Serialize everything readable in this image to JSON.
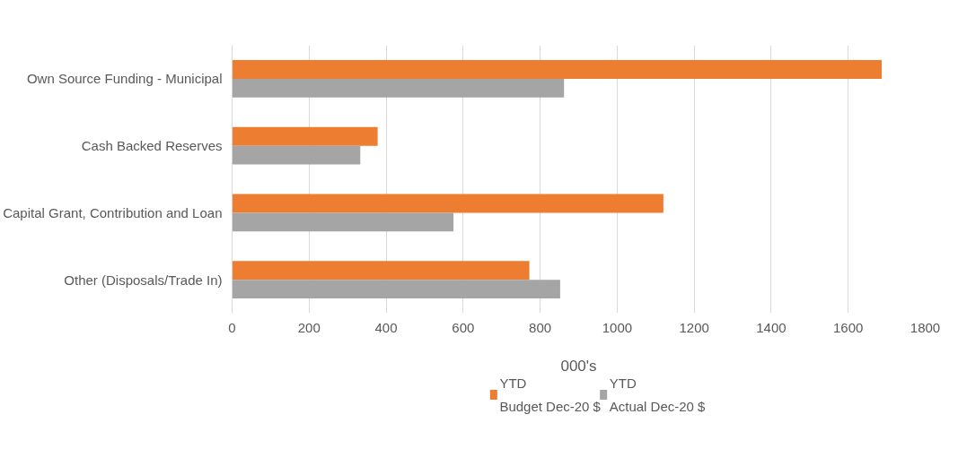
{
  "chart_data": {
    "type": "bar",
    "orientation": "horizontal",
    "xlabel": "000's",
    "categories": [
      "Own Source Funding - Municipal",
      "Cash Backed Reserves",
      "Capital Grant, Contribution and Loan",
      "Other (Disposals/Trade In)"
    ],
    "series": [
      {
        "name": "YTD Budget Dec-20 $",
        "color": "#ed7d31",
        "values": [
          1687,
          378,
          1120,
          772
        ]
      },
      {
        "name": "YTD Actual Dec-20 $",
        "color": "#a5a5a5",
        "values": [
          862,
          333,
          575,
          852
        ]
      }
    ],
    "xlim": [
      0,
      1800
    ],
    "xticks": [
      0,
      200,
      400,
      600,
      800,
      1000,
      1200,
      1400,
      1600,
      1800
    ],
    "grid": "x",
    "legend": "bottom"
  }
}
